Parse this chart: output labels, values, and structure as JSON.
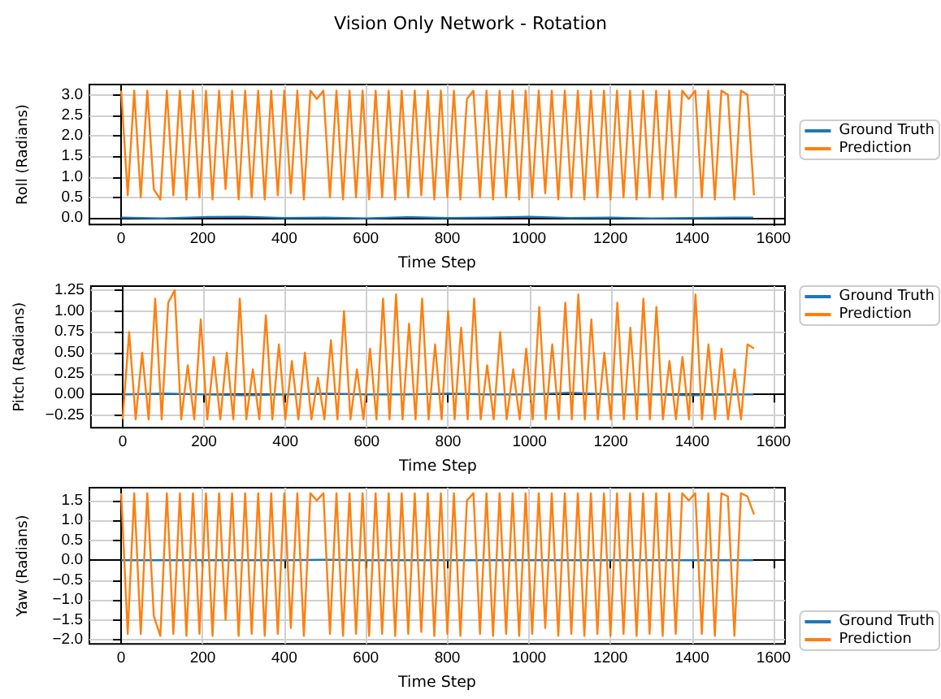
{
  "chart_data": [
    {
      "type": "line",
      "title": "Vision Only Network - Rotation",
      "xlabel": "Time Step",
      "ylabel": "Roll (Radians)",
      "legend": "right",
      "grid": true,
      "xlim": [
        -78,
        1628
      ],
      "xticks": [
        0,
        200,
        400,
        600,
        800,
        1000,
        1200,
        1400,
        1600
      ],
      "ylim": [
        -0.16,
        3.25
      ],
      "yticks": [
        {
          "value": 0,
          "label": "0.0"
        },
        {
          "value": 0.5,
          "label": "0.5"
        },
        {
          "value": 1,
          "label": "1.0"
        },
        {
          "value": 1.5,
          "label": "1.5"
        },
        {
          "value": 2,
          "label": "2.0"
        },
        {
          "value": 2.5,
          "label": "2.5"
        },
        {
          "value": 3,
          "label": "3.0"
        }
      ],
      "x": [
        0,
        16,
        32,
        48,
        64,
        80,
        96,
        112,
        128,
        144,
        160,
        176,
        192,
        208,
        224,
        240,
        256,
        272,
        288,
        304,
        320,
        336,
        352,
        368,
        384,
        400,
        416,
        432,
        448,
        464,
        480,
        496,
        512,
        528,
        544,
        560,
        576,
        592,
        608,
        624,
        640,
        656,
        672,
        688,
        704,
        720,
        736,
        752,
        768,
        784,
        800,
        816,
        832,
        848,
        864,
        880,
        896,
        912,
        928,
        944,
        960,
        976,
        992,
        1008,
        1024,
        1040,
        1056,
        1072,
        1088,
        1104,
        1120,
        1136,
        1152,
        1168,
        1184,
        1200,
        1216,
        1232,
        1248,
        1264,
        1280,
        1296,
        1312,
        1328,
        1344,
        1360,
        1376,
        1392,
        1408,
        1424,
        1440,
        1456,
        1472,
        1488,
        1504,
        1520,
        1536,
        1552
      ],
      "series": [
        {
          "name": "Ground Truth",
          "color": "#1f77b4",
          "x": [
            0,
            100,
            200,
            300,
            400,
            500,
            600,
            700,
            800,
            900,
            1000,
            1100,
            1200,
            1300,
            1400,
            1500,
            1550
          ],
          "values": [
            0.01,
            -0.01,
            0.02,
            0.03,
            0.0,
            0.01,
            -0.01,
            0.02,
            0.0,
            0.01,
            0.03,
            0.0,
            0.01,
            -0.01,
            0.0,
            0.01,
            0.01
          ]
        },
        {
          "name": "Prediction",
          "color": "#ff7f0e",
          "values": [
            3.1,
            0.55,
            3.1,
            0.5,
            3.1,
            0.7,
            0.45,
            3.1,
            0.55,
            3.1,
            0.45,
            3.1,
            0.5,
            3.1,
            0.45,
            3.1,
            0.7,
            3.1,
            0.45,
            3.1,
            0.5,
            3.1,
            0.45,
            3.1,
            0.55,
            3.1,
            0.6,
            3.1,
            0.45,
            3.1,
            2.9,
            3.1,
            0.5,
            3.1,
            0.45,
            3.1,
            0.5,
            3.1,
            0.45,
            3.1,
            0.5,
            3.1,
            0.45,
            3.1,
            0.5,
            3.1,
            0.55,
            3.1,
            0.45,
            3.1,
            0.5,
            3.1,
            0.45,
            2.9,
            3.1,
            0.5,
            3.1,
            0.45,
            3.1,
            0.5,
            3.1,
            0.45,
            3.1,
            0.5,
            3.1,
            0.6,
            3.1,
            0.45,
            3.1,
            0.5,
            3.1,
            0.45,
            3.1,
            0.5,
            3.1,
            0.45,
            3.1,
            0.5,
            3.1,
            0.45,
            3.1,
            0.5,
            3.1,
            0.45,
            3.1,
            0.5,
            3.1,
            2.9,
            3.1,
            0.5,
            3.1,
            0.45,
            3.1,
            3.0,
            0.45,
            3.1,
            3.0,
            0.55
          ]
        }
      ]
    },
    {
      "type": "line",
      "xlabel": "Time Step",
      "ylabel": "Pitch (Radians)",
      "legend": "top right",
      "grid": true,
      "xlim": [
        -78,
        1628
      ],
      "xticks": [
        0,
        200,
        400,
        600,
        800,
        1000,
        1200,
        1400,
        1600
      ],
      "ylim": [
        -0.4,
        1.3
      ],
      "yticks": [
        {
          "value": -0.25,
          "label": "−0.25"
        },
        {
          "value": 0,
          "label": "0.00"
        },
        {
          "value": 0.25,
          "label": "0.25"
        },
        {
          "value": 0.5,
          "label": "0.50"
        },
        {
          "value": 0.75,
          "label": "0.75"
        },
        {
          "value": 1,
          "label": "1.00"
        },
        {
          "value": 1.25,
          "label": "1.25"
        }
      ],
      "x": [
        0,
        16,
        32,
        48,
        64,
        80,
        96,
        112,
        128,
        144,
        160,
        176,
        192,
        208,
        224,
        240,
        256,
        272,
        288,
        304,
        320,
        336,
        352,
        368,
        384,
        400,
        416,
        432,
        448,
        464,
        480,
        496,
        512,
        528,
        544,
        560,
        576,
        592,
        608,
        624,
        640,
        656,
        672,
        688,
        704,
        720,
        736,
        752,
        768,
        784,
        800,
        816,
        832,
        848,
        864,
        880,
        896,
        912,
        928,
        944,
        960,
        976,
        992,
        1008,
        1024,
        1040,
        1056,
        1072,
        1088,
        1104,
        1120,
        1136,
        1152,
        1168,
        1184,
        1200,
        1216,
        1232,
        1248,
        1264,
        1280,
        1296,
        1312,
        1328,
        1344,
        1360,
        1376,
        1392,
        1408,
        1424,
        1440,
        1456,
        1472,
        1488,
        1504,
        1520,
        1536,
        1552
      ],
      "series": [
        {
          "name": "Ground Truth",
          "color": "#1f77b4",
          "x": [
            0,
            100,
            200,
            300,
            400,
            500,
            600,
            700,
            800,
            900,
            1000,
            1100,
            1200,
            1300,
            1400,
            1500,
            1550
          ],
          "values": [
            0.0,
            0.01,
            0.0,
            -0.01,
            0.0,
            0.01,
            0.0,
            0.0,
            0.01,
            0.0,
            0.0,
            0.02,
            0.0,
            0.0,
            -0.01,
            0.0,
            0.0
          ]
        },
        {
          "name": "Prediction",
          "color": "#ff7f0e",
          "values": [
            -0.3,
            0.75,
            -0.3,
            0.5,
            -0.3,
            1.15,
            -0.3,
            1.1,
            1.25,
            -0.3,
            0.35,
            -0.3,
            0.9,
            -0.3,
            0.45,
            -0.3,
            0.5,
            -0.3,
            1.15,
            -0.3,
            0.3,
            -0.3,
            0.95,
            -0.3,
            0.6,
            -0.3,
            0.4,
            -0.3,
            0.5,
            -0.3,
            0.2,
            -0.3,
            0.65,
            -0.3,
            1.0,
            -0.3,
            0.3,
            -0.3,
            0.55,
            -0.3,
            1.15,
            -0.3,
            1.2,
            -0.3,
            0.85,
            -0.3,
            1.15,
            -0.3,
            0.6,
            -0.3,
            1.0,
            -0.3,
            0.8,
            -0.3,
            1.15,
            -0.3,
            0.35,
            -0.3,
            0.75,
            -0.3,
            0.3,
            -0.3,
            0.55,
            -0.3,
            1.05,
            -0.3,
            0.6,
            -0.3,
            1.1,
            -0.3,
            1.2,
            -0.3,
            0.9,
            -0.3,
            0.5,
            -0.3,
            1.1,
            -0.3,
            0.8,
            -0.3,
            1.15,
            -0.3,
            1.05,
            -0.3,
            0.4,
            -0.3,
            0.45,
            -0.3,
            1.2,
            -0.3,
            0.6,
            -0.3,
            0.55,
            -0.3,
            0.3,
            -0.3,
            0.6,
            0.55
          ]
        }
      ]
    },
    {
      "type": "line",
      "xlabel": "Time Step",
      "ylabel": "Yaw (Radians)",
      "legend": "bottom right",
      "grid": true,
      "xlim": [
        -78,
        1628
      ],
      "xticks": [
        0,
        200,
        400,
        600,
        800,
        1000,
        1200,
        1400,
        1600
      ],
      "ylim": [
        -2.1,
        1.82
      ],
      "yticks": [
        {
          "value": -2,
          "label": "−2.0"
        },
        {
          "value": -1.5,
          "label": "−1.5"
        },
        {
          "value": -1,
          "label": "−1.0"
        },
        {
          "value": -0.5,
          "label": "−0.5"
        },
        {
          "value": 0,
          "label": "0.0"
        },
        {
          "value": 0.5,
          "label": "0.5"
        },
        {
          "value": 1,
          "label": "1.0"
        },
        {
          "value": 1.5,
          "label": "1.5"
        }
      ],
      "x": [
        0,
        16,
        32,
        48,
        64,
        80,
        96,
        112,
        128,
        144,
        160,
        176,
        192,
        208,
        224,
        240,
        256,
        272,
        288,
        304,
        320,
        336,
        352,
        368,
        384,
        400,
        416,
        432,
        448,
        464,
        480,
        496,
        512,
        528,
        544,
        560,
        576,
        592,
        608,
        624,
        640,
        656,
        672,
        688,
        704,
        720,
        736,
        752,
        768,
        784,
        800,
        816,
        832,
        848,
        864,
        880,
        896,
        912,
        928,
        944,
        960,
        976,
        992,
        1008,
        1024,
        1040,
        1056,
        1072,
        1088,
        1104,
        1120,
        1136,
        1152,
        1168,
        1184,
        1200,
        1216,
        1232,
        1248,
        1264,
        1280,
        1296,
        1312,
        1328,
        1344,
        1360,
        1376,
        1392,
        1408,
        1424,
        1440,
        1456,
        1472,
        1488,
        1504,
        1520,
        1536,
        1552
      ],
      "series": [
        {
          "name": "Ground Truth",
          "color": "#1f77b4",
          "x": [
            0,
            100,
            200,
            300,
            400,
            500,
            600,
            700,
            800,
            900,
            1000,
            1100,
            1200,
            1300,
            1400,
            1500,
            1550
          ],
          "values": [
            0.0,
            0.0,
            0.0,
            0.0,
            0.0,
            0.01,
            0.0,
            0.0,
            0.0,
            0.0,
            0.0,
            0.0,
            0.0,
            0.0,
            0.0,
            0.0,
            0.0
          ]
        },
        {
          "name": "Prediction",
          "color": "#ff7f0e",
          "values": [
            1.68,
            -1.85,
            1.68,
            -1.85,
            1.68,
            -1.4,
            -1.9,
            1.68,
            -1.85,
            1.68,
            -1.9,
            1.68,
            -1.85,
            1.68,
            -1.9,
            1.68,
            -1.5,
            1.68,
            -1.9,
            1.68,
            -1.85,
            1.68,
            -1.9,
            1.68,
            -1.85,
            1.68,
            -1.7,
            1.68,
            -1.9,
            1.68,
            1.5,
            1.68,
            -1.85,
            1.68,
            -1.9,
            1.68,
            -1.85,
            1.68,
            -1.9,
            1.68,
            -1.85,
            1.68,
            -1.9,
            1.68,
            -1.85,
            1.68,
            -1.8,
            1.68,
            -1.9,
            1.68,
            -1.85,
            1.68,
            -1.9,
            1.5,
            1.68,
            -1.85,
            1.68,
            -1.9,
            1.68,
            -1.85,
            1.68,
            -1.9,
            1.68,
            -1.85,
            1.68,
            -1.7,
            1.68,
            -1.9,
            1.68,
            -1.85,
            1.68,
            -1.9,
            1.68,
            -1.85,
            1.68,
            -1.9,
            1.68,
            -1.85,
            1.68,
            -1.9,
            1.68,
            -1.85,
            1.68,
            -1.9,
            1.68,
            -1.85,
            1.68,
            1.5,
            1.68,
            -1.85,
            1.68,
            -1.9,
            1.68,
            1.6,
            -1.9,
            1.68,
            1.6,
            1.15
          ]
        }
      ]
    }
  ]
}
